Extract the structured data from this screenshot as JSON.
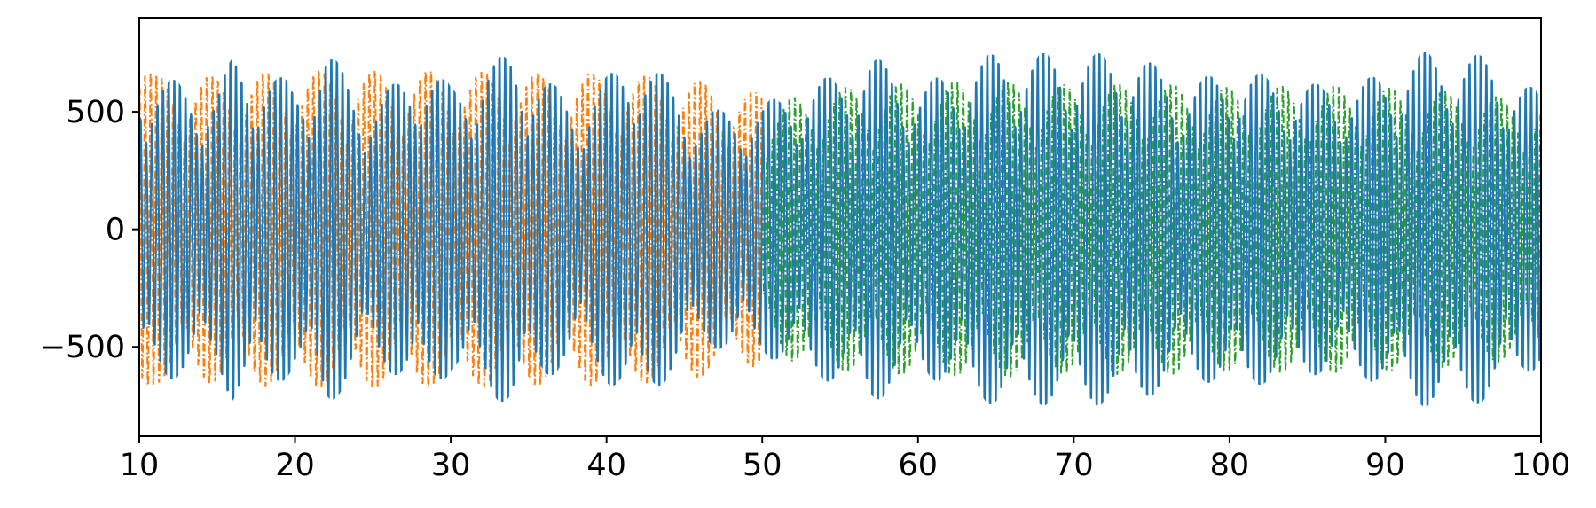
{
  "chart_data": {
    "type": "line",
    "title": "",
    "xlabel": "",
    "ylabel": "",
    "xlim": [
      10,
      100
    ],
    "ylim": [
      -880,
      900
    ],
    "grid": false,
    "legend": "none",
    "x_ticks": [
      {
        "value": 10,
        "label": "10"
      },
      {
        "value": 20,
        "label": "20"
      },
      {
        "value": 30,
        "label": "30"
      },
      {
        "value": 40,
        "label": "40"
      },
      {
        "value": 50,
        "label": "50"
      },
      {
        "value": 60,
        "label": "60"
      },
      {
        "value": 70,
        "label": "70"
      },
      {
        "value": 80,
        "label": "80"
      },
      {
        "value": 90,
        "label": "90"
      },
      {
        "value": 100,
        "label": "100"
      }
    ],
    "y_ticks": [
      {
        "value": 500,
        "label": "500"
      },
      {
        "value": 0,
        "label": "0"
      },
      {
        "value": -500,
        "label": "−500"
      }
    ],
    "series": [
      {
        "color": "#1f77b4",
        "style": "solid",
        "x_range": [
          10,
          100
        ],
        "oscillation_period": 0.36,
        "amplitude_envelope": [
          [
            10,
            700
          ],
          [
            15,
            620
          ],
          [
            16,
            770
          ],
          [
            20,
            650
          ],
          [
            22,
            800
          ],
          [
            25,
            560
          ],
          [
            28,
            760
          ],
          [
            30,
            640
          ],
          [
            34,
            800
          ],
          [
            38,
            560
          ],
          [
            42,
            800
          ],
          [
            46,
            520
          ],
          [
            50,
            560
          ],
          [
            55,
            700
          ],
          [
            57,
            780
          ],
          [
            60,
            640
          ],
          [
            65,
            790
          ],
          [
            70,
            780
          ],
          [
            74,
            790
          ],
          [
            77,
            640
          ],
          [
            80,
            720
          ],
          [
            85,
            650
          ],
          [
            88,
            640
          ],
          [
            92,
            780
          ],
          [
            94,
            810
          ],
          [
            97,
            760
          ],
          [
            100,
            600
          ]
        ]
      },
      {
        "color": "#ff7f0e",
        "style": "dashdot",
        "x_range": [
          10,
          50
        ],
        "oscillation_period": 0.36,
        "amplitude_envelope": [
          [
            10,
            790
          ],
          [
            11,
            680
          ],
          [
            15,
            680
          ],
          [
            20,
            700
          ],
          [
            25,
            700
          ],
          [
            30,
            700
          ],
          [
            35,
            690
          ],
          [
            40,
            690
          ],
          [
            45,
            670
          ],
          [
            48,
            630
          ],
          [
            50,
            600
          ]
        ]
      },
      {
        "color": "#2ca02c",
        "style": "dashdot",
        "x_range": [
          50,
          100
        ],
        "oscillation_period": 0.36,
        "amplitude_envelope": [
          [
            50,
            500
          ],
          [
            52,
            580
          ],
          [
            55,
            620
          ],
          [
            60,
            640
          ],
          [
            65,
            650
          ],
          [
            70,
            630
          ],
          [
            75,
            640
          ],
          [
            80,
            620
          ],
          [
            85,
            630
          ],
          [
            90,
            620
          ],
          [
            95,
            600
          ],
          [
            100,
            560
          ]
        ]
      }
    ]
  }
}
